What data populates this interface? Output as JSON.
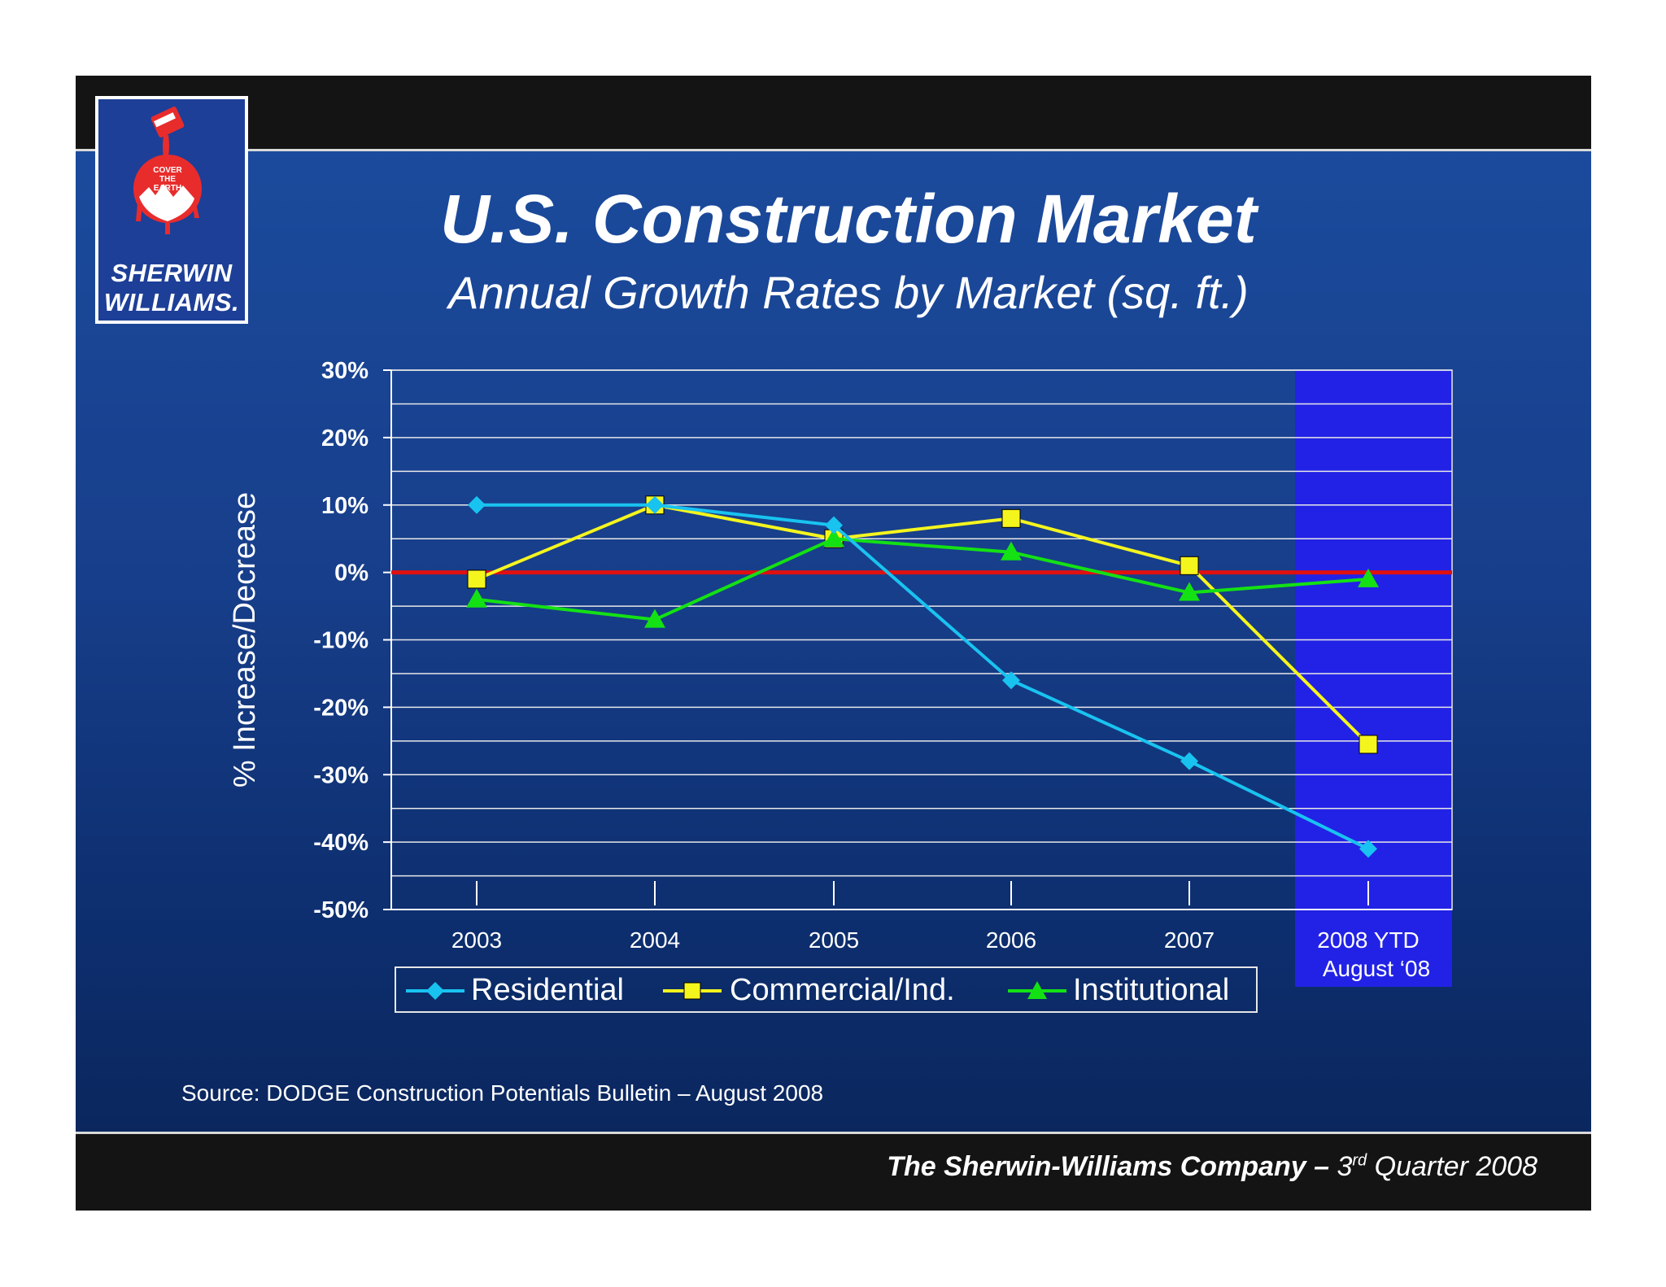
{
  "brand": {
    "name_line1": "SHERWIN",
    "name_line2": "WILLIAMS.",
    "slogan": "COVER THE EARTH"
  },
  "slide": {
    "title": "U.S. Construction Market",
    "subtitle": "Annual Growth Rates by Market (sq. ft.)",
    "source": "Source:  DODGE Construction Potentials Bulletin – August 2008",
    "footer_company": "The Sherwin-Williams Company –",
    "footer_quarter_num": "3",
    "footer_quarter_sup": "rd",
    "footer_quarter_rest": "Quarter 2008"
  },
  "chart_data": {
    "type": "line",
    "title": "Annual Growth Rates by Market (sq. ft.)",
    "ylabel": "% Increase/Decrease",
    "xlabel": "",
    "ylim": [
      -50,
      30
    ],
    "y_ticks": [
      "30%",
      "20%",
      "10%",
      "0%",
      "-10%",
      "-20%",
      "-30%",
      "-40%",
      "-50%"
    ],
    "y_tick_values": [
      30,
      20,
      10,
      0,
      -10,
      -20,
      -30,
      -40,
      -50
    ],
    "categories": [
      "2003",
      "2004",
      "2005",
      "2006",
      "2007",
      "2008 YTD"
    ],
    "category_sublabel": "August ‘08",
    "highlighted_category": "2008 YTD",
    "reference_line": 0,
    "grid": true,
    "legend_position": "bottom",
    "series": [
      {
        "name": "Residential",
        "marker": "diamond",
        "color": "#19c3f0",
        "values": [
          10,
          10,
          7,
          -16,
          -28,
          -41
        ]
      },
      {
        "name": "Commercial/Ind.",
        "marker": "square",
        "color": "#f5f51e",
        "values": [
          -1,
          10,
          5,
          8,
          1,
          -25.5
        ]
      },
      {
        "name": "Institutional",
        "marker": "triangle",
        "color": "#14e114",
        "values": [
          -4,
          -7,
          5,
          3,
          -3,
          -1
        ]
      }
    ],
    "colors": {
      "zero_line": "#e01010",
      "highlight_band": "#2222e6",
      "grid": "#e8e8e8"
    }
  }
}
